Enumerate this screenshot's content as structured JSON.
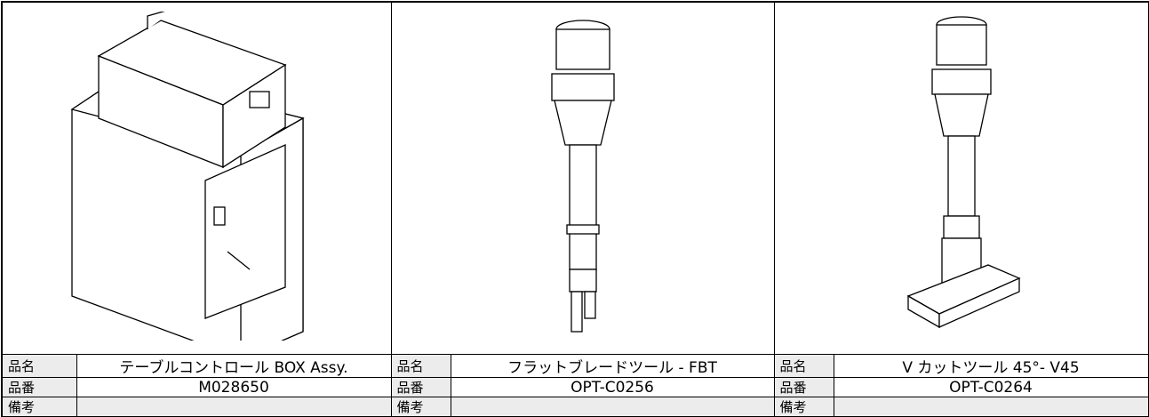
{
  "products": [
    {
      "name_label": "品名",
      "name": "テーブルコントロール BOX Assy.",
      "number_label": "品番",
      "number": "M028650",
      "remarks_label": "備考"
    },
    {
      "name_label": "品名",
      "name": "フラットブレードツール - FBT",
      "number_label": "品番",
      "number": "OPT-C0256",
      "remarks_label": "備考"
    },
    {
      "name_label": "品名",
      "name": "V カットツール 45°- V45",
      "number_label": "品番",
      "number": "OPT-C0264",
      "remarks_label": "備考"
    }
  ]
}
